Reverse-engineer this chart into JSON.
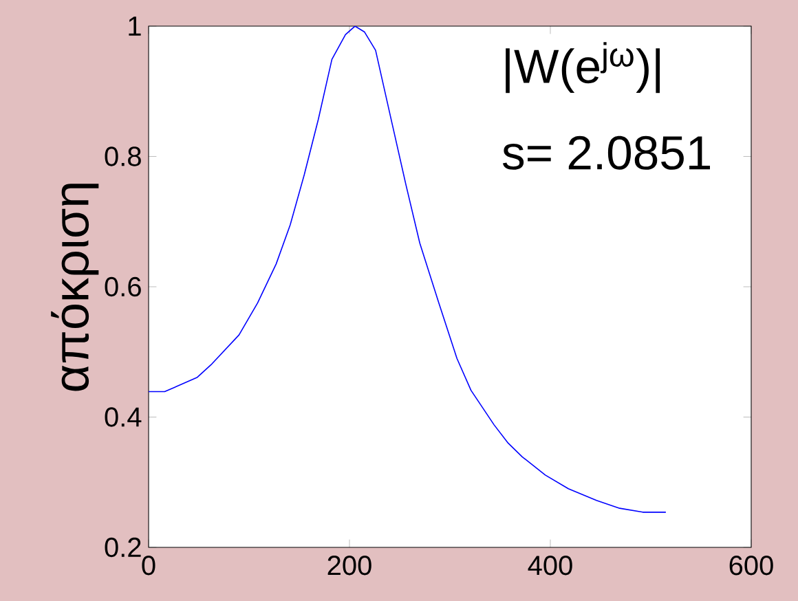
{
  "chart_data": {
    "type": "line",
    "ylabel": "απόκριση",
    "annotations": [
      "|W(e$^{jω}$)|",
      "s= 2.0851"
    ],
    "x": [
      0,
      16,
      48.5,
      62,
      90,
      108.5,
      127,
      141,
      155,
      169,
      182.5,
      196,
      205.5,
      215,
      226,
      242.5,
      256,
      270,
      289,
      307,
      321,
      344,
      358,
      372,
      395,
      418,
      446,
      469,
      492,
      515
    ],
    "series": [
      {
        "color": "#0000ff",
        "values": [
          0.439,
          0.439,
          0.461,
          0.48,
          0.526,
          0.575,
          0.635,
          0.695,
          0.772,
          0.857,
          0.949,
          0.987,
          1.0,
          0.991,
          0.963,
          0.85,
          0.758,
          0.667,
          0.575,
          0.49,
          0.441,
          0.388,
          0.36,
          0.339,
          0.311,
          0.29,
          0.272,
          0.26,
          0.254,
          0.254
        ]
      }
    ],
    "xlim": [
      0,
      600
    ],
    "ylim": [
      0.2,
      1
    ],
    "xticks": [
      0,
      200,
      400,
      600
    ],
    "yticks": [
      0.2,
      0.4,
      0.6,
      0.8,
      1
    ],
    "grid": false,
    "marker": "none",
    "line_style": "solid"
  }
}
